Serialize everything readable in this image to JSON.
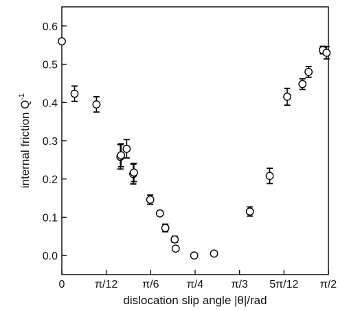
{
  "chart_data": {
    "type": "scatter",
    "title": "",
    "xlabel": "dislocation slip angle |θ|/rad",
    "ylabel": "internal friction Q",
    "ylabel_superscript": "-1",
    "xlim": [
      0,
      1.5708
    ],
    "ylim": [
      -0.05,
      0.65
    ],
    "x_ticks": [
      {
        "value": 0,
        "label": "0"
      },
      {
        "value": 0.2618,
        "label": "π/12"
      },
      {
        "value": 0.5236,
        "label": "π/6"
      },
      {
        "value": 0.7854,
        "label": "π/4"
      },
      {
        "value": 1.0472,
        "label": "π/3"
      },
      {
        "value": 1.309,
        "label": "5π/12"
      },
      {
        "value": 1.5708,
        "label": "π/2"
      }
    ],
    "y_ticks": [
      {
        "value": 0.0,
        "label": "0.0"
      },
      {
        "value": 0.1,
        "label": "0.1"
      },
      {
        "value": 0.2,
        "label": "0.2"
      },
      {
        "value": 0.3,
        "label": "0.3"
      },
      {
        "value": 0.4,
        "label": "0.4"
      },
      {
        "value": 0.5,
        "label": "0.5"
      },
      {
        "value": 0.6,
        "label": "0.6"
      }
    ],
    "grid": false,
    "legend": "none",
    "marker": "open-circle",
    "points": [
      {
        "x": 0.0,
        "y": 0.56,
        "err": 0.0
      },
      {
        "x": 0.075,
        "y": 0.423,
        "err": 0.02
      },
      {
        "x": 0.204,
        "y": 0.395,
        "err": 0.02
      },
      {
        "x": 0.345,
        "y": 0.258,
        "err": 0.032
      },
      {
        "x": 0.349,
        "y": 0.262,
        "err": 0.03
      },
      {
        "x": 0.382,
        "y": 0.279,
        "err": 0.024
      },
      {
        "x": 0.421,
        "y": 0.213,
        "err": 0.026
      },
      {
        "x": 0.425,
        "y": 0.217,
        "err": 0.024
      },
      {
        "x": 0.521,
        "y": 0.146,
        "err": 0.012
      },
      {
        "x": 0.578,
        "y": 0.11,
        "err": 0.006
      },
      {
        "x": 0.61,
        "y": 0.072,
        "err": 0.01
      },
      {
        "x": 0.665,
        "y": 0.042,
        "err": 0.008
      },
      {
        "x": 0.671,
        "y": 0.018,
        "err": 0.006
      },
      {
        "x": 0.78,
        "y": 0.0,
        "err": 0.0
      },
      {
        "x": 0.897,
        "y": 0.005,
        "err": 0.005
      },
      {
        "x": 1.108,
        "y": 0.115,
        "err": 0.012
      },
      {
        "x": 1.225,
        "y": 0.208,
        "err": 0.02
      },
      {
        "x": 1.328,
        "y": 0.415,
        "err": 0.022
      },
      {
        "x": 1.418,
        "y": 0.448,
        "err": 0.014
      },
      {
        "x": 1.454,
        "y": 0.48,
        "err": 0.014
      },
      {
        "x": 1.538,
        "y": 0.537,
        "err": 0.01
      },
      {
        "x": 1.56,
        "y": 0.53,
        "err": 0.016
      }
    ]
  }
}
